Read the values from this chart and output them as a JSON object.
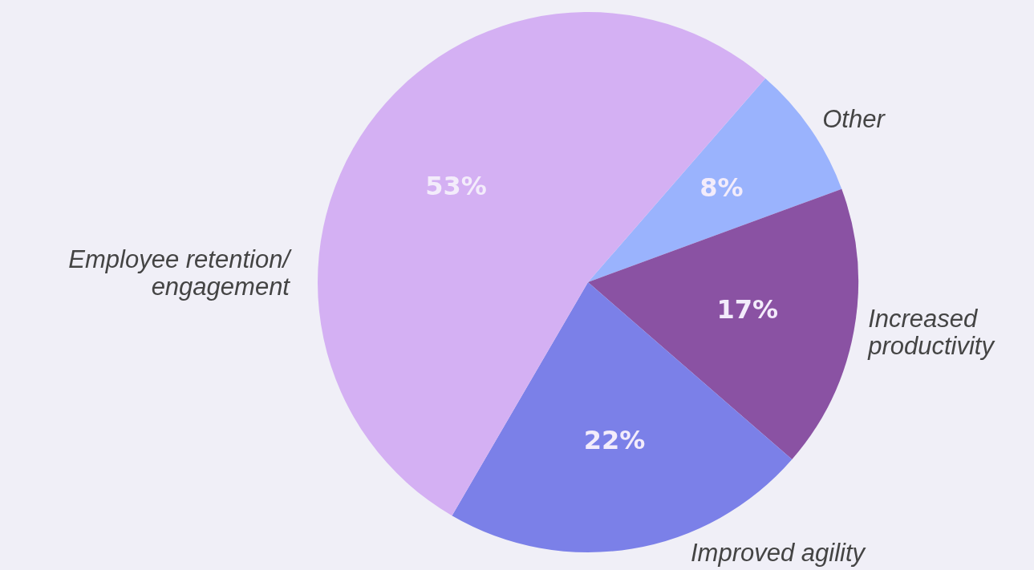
{
  "chart_data": {
    "type": "pie",
    "categories": [
      "Other",
      "Increased\nproductivity",
      "Improved agility",
      "Employee retention/\nengagement"
    ],
    "values": [
      8,
      17,
      22,
      53
    ],
    "colors": [
      "#9ab3fd",
      "#8a52a3",
      "#7b80e8",
      "#d4b0f3"
    ],
    "value_labels": [
      "8%",
      "17%",
      "22%",
      "53%"
    ],
    "legend": false
  }
}
